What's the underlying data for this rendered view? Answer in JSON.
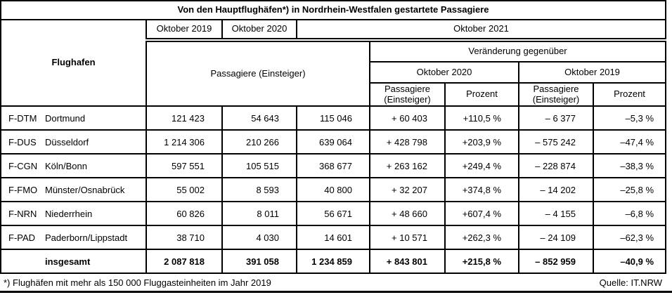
{
  "title": "Von den Hauptflughäfen*) in Nordrhein-Westfalen gestartete Passagiere",
  "header": {
    "flughafen": "Flughafen",
    "col_okt2019": "Oktober 2019",
    "col_okt2020": "Oktober 2020",
    "col_okt2021": "Oktober  2021",
    "passagiere_einsteiger": "Passagiere (Einsteiger)",
    "veraenderung": "Veränderung gegenüber",
    "vs_okt2020": "Oktober 2020",
    "vs_okt2019": "Oktober 2019",
    "sub_passagiere_2020": "Passagiere (Einsteiger)",
    "sub_prozent_2020": "Prozent",
    "sub_passagiere_2019": "Passagiere (Einsteiger)",
    "sub_prozent_2019": "Prozent"
  },
  "rows": [
    {
      "code": "F-DTM",
      "name": "Dortmund",
      "okt2019": "121 423",
      "okt2020": "54 643",
      "okt2021": "115 046",
      "diff2020_abs": "+ 60 403",
      "diff2020_pct": "+110,5 %",
      "diff2019_abs": "– 6 377",
      "diff2019_pct": "–5,3 %"
    },
    {
      "code": "F-DUS",
      "name": "Düsseldorf",
      "okt2019": "1 214 306",
      "okt2020": "210 266",
      "okt2021": "639 064",
      "diff2020_abs": "+ 428 798",
      "diff2020_pct": "+203,9 %",
      "diff2019_abs": "– 575 242",
      "diff2019_pct": "–47,4 %"
    },
    {
      "code": "F-CGN",
      "name": "Köln/Bonn",
      "okt2019": "597 551",
      "okt2020": "105 515",
      "okt2021": "368 677",
      "diff2020_abs": "+ 263 162",
      "diff2020_pct": "+249,4 %",
      "diff2019_abs": "– 228 874",
      "diff2019_pct": "–38,3 %"
    },
    {
      "code": "F-FMO",
      "name": "Münster/Osnabrück",
      "okt2019": "55 002",
      "okt2020": "8 593",
      "okt2021": "40 800",
      "diff2020_abs": "+ 32 207",
      "diff2020_pct": "+374,8 %",
      "diff2019_abs": "– 14 202",
      "diff2019_pct": "–25,8 %"
    },
    {
      "code": "F-NRN",
      "name": "Niederrhein",
      "okt2019": "60 826",
      "okt2020": "8 011",
      "okt2021": "56 671",
      "diff2020_abs": "+ 48 660",
      "diff2020_pct": "+607,4 %",
      "diff2019_abs": "– 4 155",
      "diff2019_pct": "–6,8 %"
    },
    {
      "code": "F-PAD",
      "name": "Paderborn/Lippstadt",
      "okt2019": "38 710",
      "okt2020": "4 030",
      "okt2021": "14 601",
      "diff2020_abs": "+ 10 571",
      "diff2020_pct": "+262,3 %",
      "diff2019_abs": "– 24 109",
      "diff2019_pct": "–62,3 %"
    }
  ],
  "total_row": {
    "code": "",
    "name": "insgesamt",
    "okt2019": "2 087 818",
    "okt2020": "391 058",
    "okt2021": "1 234 859",
    "diff2020_abs": "+ 843 801",
    "diff2020_pct": "+215,8 %",
    "diff2019_abs": "– 852 959",
    "diff2019_pct": "–40,9 %"
  },
  "footer": {
    "footnote": "*) Flughäfen mit mehr als 150 000 Fluggasteinheiten im Jahr 2019",
    "source": "Quelle: IT.NRW"
  }
}
